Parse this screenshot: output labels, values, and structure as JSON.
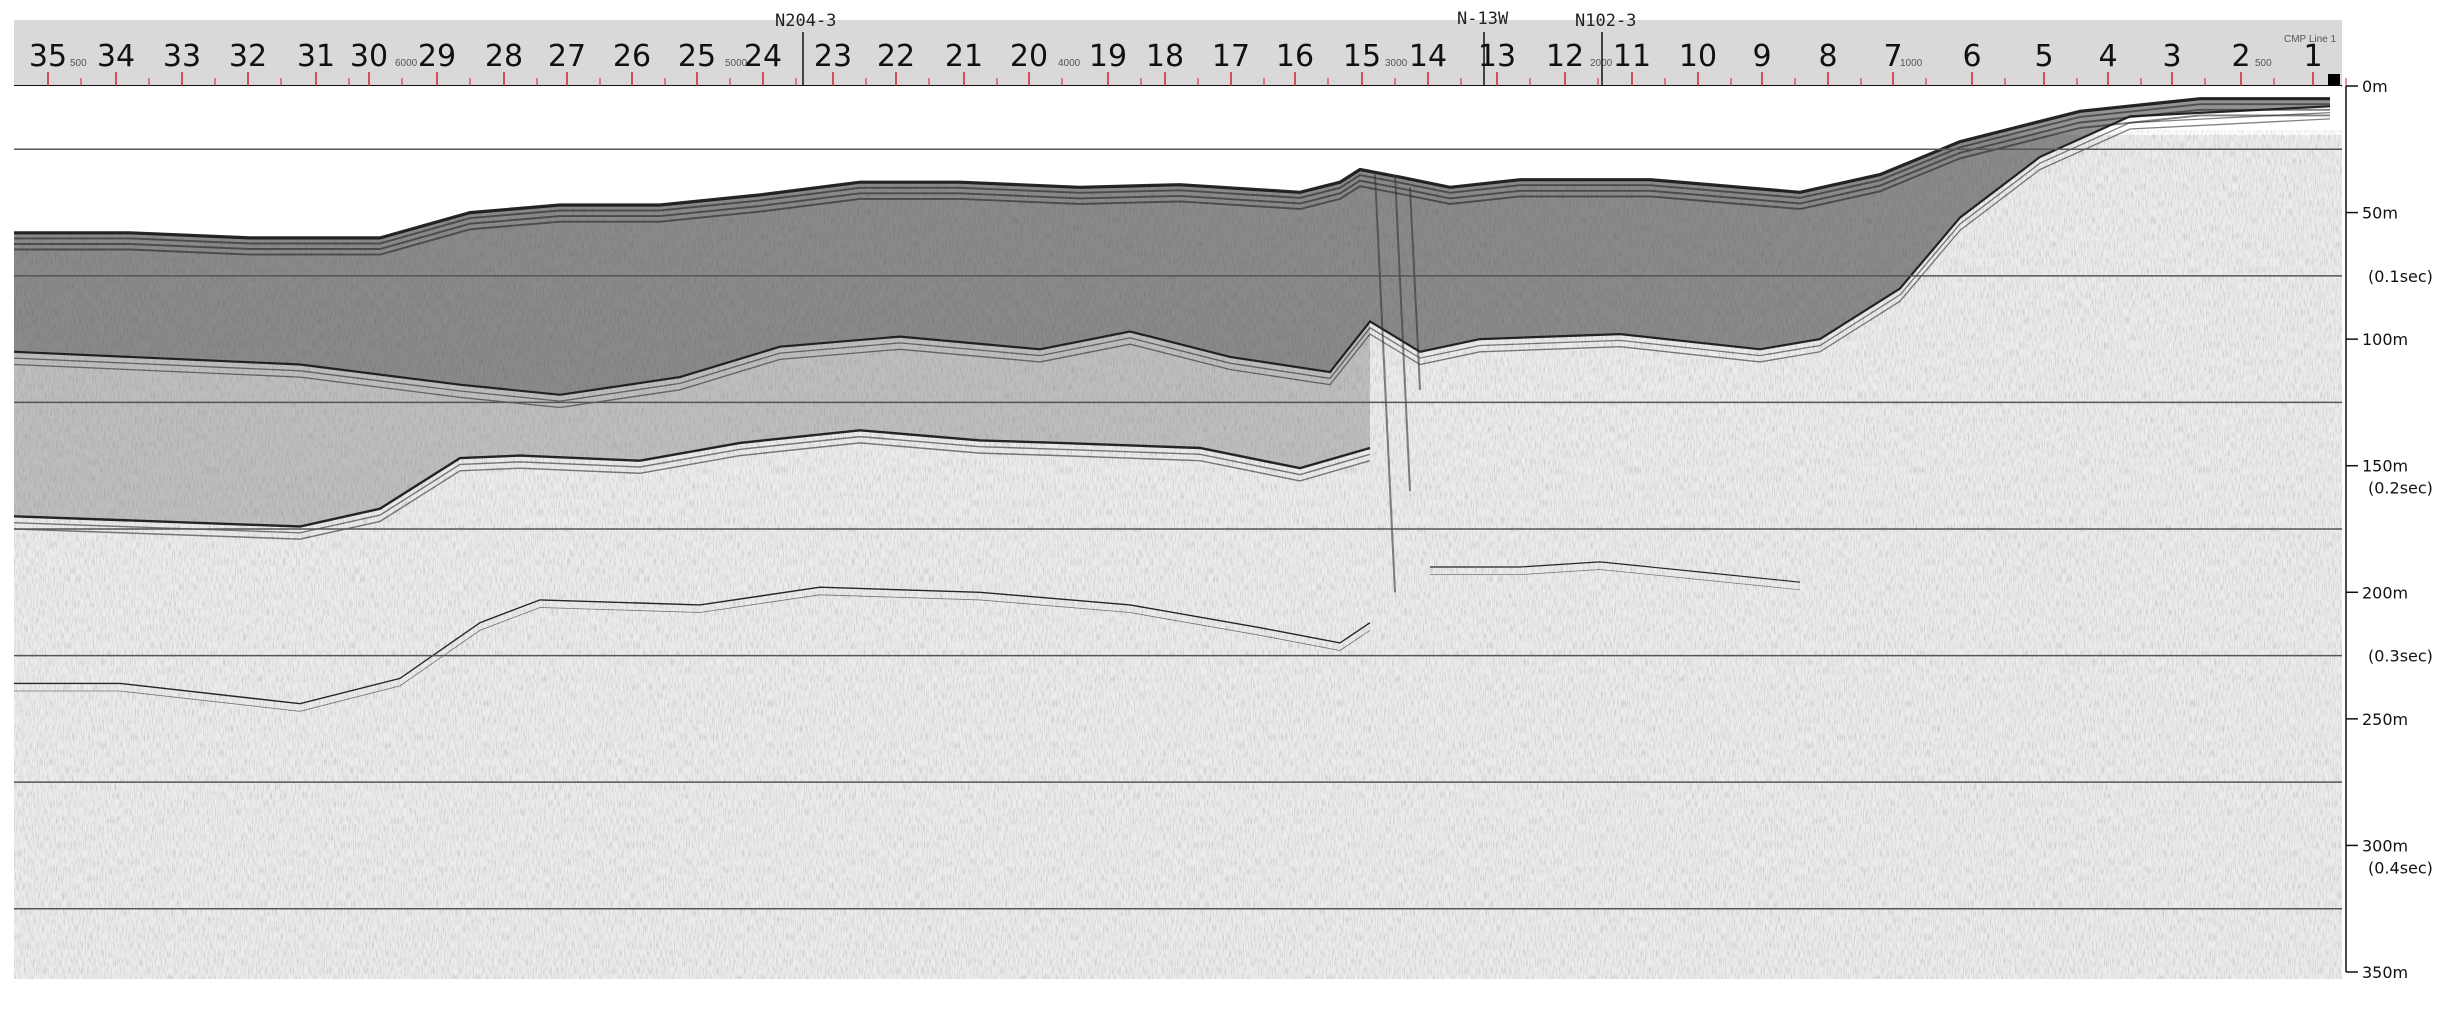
{
  "profile": {
    "header_labels": [
      "N204-3",
      "N-13W",
      "N102-3"
    ],
    "ruler_labels": [
      "35",
      "34",
      "33",
      "32",
      "31",
      "30",
      "29",
      "28",
      "27",
      "26",
      "25",
      "24",
      "23",
      "22",
      "21",
      "20",
      "19",
      "18",
      "17",
      "16",
      "15",
      "14",
      "13",
      "12",
      "11",
      "10",
      "9",
      "8",
      "7",
      "6",
      "5",
      "4",
      "3",
      "2",
      "1"
    ],
    "small_ticks": [
      "500",
      "6000",
      "5000",
      "4000",
      "3000",
      "2000",
      "1000",
      "500"
    ],
    "top_right_label": "CMP Line 1",
    "depth_labels": [
      {
        "text": "0m",
        "depth": 0
      },
      {
        "text": "50m",
        "depth": 50
      },
      {
        "text": "(0.1sec)",
        "depth": 75
      },
      {
        "text": "100m",
        "depth": 100
      },
      {
        "text": "150m",
        "depth": 150
      },
      {
        "text": "(0.2sec)",
        "depth": 150
      },
      {
        "text": "200m",
        "depth": 200
      },
      {
        "text": "(0.3sec)",
        "depth": 225
      },
      {
        "text": "250m",
        "depth": 250
      },
      {
        "text": "300m",
        "depth": 300
      },
      {
        "text": "(0.4sec)",
        "depth": 300
      },
      {
        "text": "350m",
        "depth": 350
      }
    ],
    "colors": {
      "reflector": "#1a1a1a",
      "noise": "#9a9a9a",
      "grid": "#555555",
      "ruler_bg": "#d9d9d9"
    }
  }
}
